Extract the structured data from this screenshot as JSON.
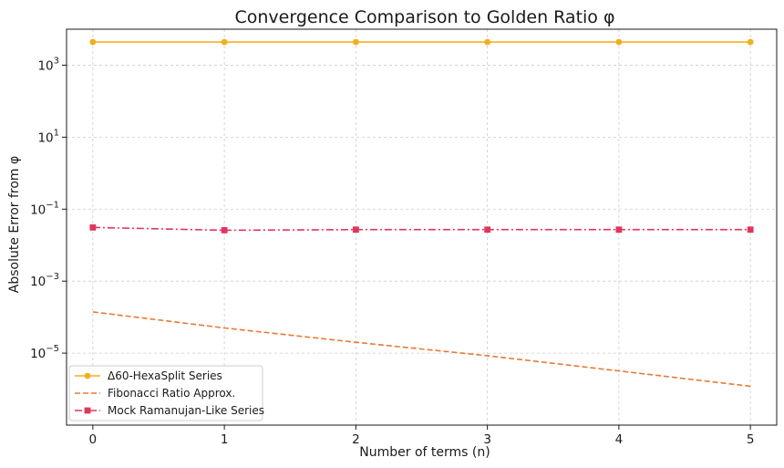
{
  "chart_data": {
    "type": "line",
    "title": "Convergence Comparison to Golden Ratio φ",
    "xlabel": "Number of terms (n)",
    "ylabel": "Absolute Error from φ",
    "x": [
      0,
      1,
      2,
      3,
      4,
      5
    ],
    "xlim": [
      -0.2,
      5.2
    ],
    "ylim": [
      1e-07,
      10000.0
    ],
    "yscale": "log",
    "x_ticks": [
      "0",
      "1",
      "2",
      "3",
      "4",
      "5"
    ],
    "y_ticks": [
      {
        "value": 1e-05,
        "base": "10",
        "exp": "−5"
      },
      {
        "value": 0.001,
        "base": "10",
        "exp": "−3"
      },
      {
        "value": 0.1,
        "base": "10",
        "exp": "−1"
      },
      {
        "value": 10,
        "base": "10",
        "exp": "1"
      },
      {
        "value": 1000,
        "base": "10",
        "exp": "3"
      }
    ],
    "grid": true,
    "legend_position": "lower-left",
    "series": [
      {
        "name": "Δ60-HexaSplit Series",
        "values": [
          4400,
          4400,
          4400,
          4400,
          4400,
          4400
        ],
        "color": "#F2B01E",
        "line_style": "solid",
        "marker": "circle"
      },
      {
        "name": "Fibonacci Ratio Approx.",
        "values": [
          0.00014,
          5e-05,
          2e-05,
          8.5e-06,
          3.2e-06,
          1.2e-06
        ],
        "color": "#E87A36",
        "line_style": "dashed",
        "marker": "none"
      },
      {
        "name": "Mock Ramanujan-Like Series",
        "values": [
          0.031,
          0.026,
          0.027,
          0.027,
          0.027,
          0.027
        ],
        "color": "#E0365E",
        "line_style": "dashdot",
        "marker": "square"
      }
    ]
  }
}
